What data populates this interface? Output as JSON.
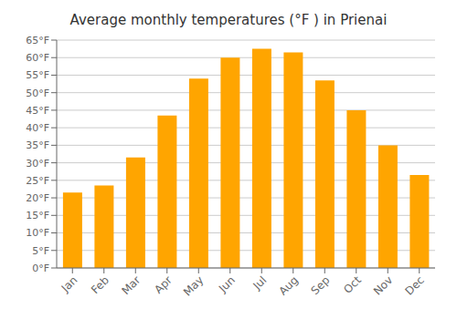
{
  "chart_data": {
    "type": "bar",
    "title": "Average monthly temperatures (°F ) in Prienai",
    "categories": [
      "Jan",
      "Feb",
      "Mar",
      "Apr",
      "May",
      "Jun",
      "Jul",
      "Aug",
      "Sep",
      "Oct",
      "Nov",
      "Dec"
    ],
    "values": [
      21.5,
      23.5,
      31.5,
      43.5,
      54.0,
      60.0,
      62.5,
      61.5,
      53.5,
      45.0,
      35.0,
      26.5
    ],
    "color": "#FFA500",
    "ylim": [
      0,
      65
    ],
    "yticks": [
      {
        "value": 0,
        "label": "0°F"
      },
      {
        "value": 5,
        "label": "5°F"
      },
      {
        "value": 10,
        "label": "10°F"
      },
      {
        "value": 15,
        "label": "15°F"
      },
      {
        "value": 20,
        "label": "20°F"
      },
      {
        "value": 25,
        "label": "25°F"
      },
      {
        "value": 30,
        "label": "30°F"
      },
      {
        "value": 35,
        "label": "35°F"
      },
      {
        "value": 40,
        "label": "40°F"
      },
      {
        "value": 45,
        "label": "45°F"
      },
      {
        "value": 50,
        "label": "50°F"
      },
      {
        "value": 55,
        "label": "55°F"
      },
      {
        "value": 60,
        "label": "60°F"
      },
      {
        "value": 65,
        "label": "65°F"
      }
    ],
    "grid": true
  }
}
